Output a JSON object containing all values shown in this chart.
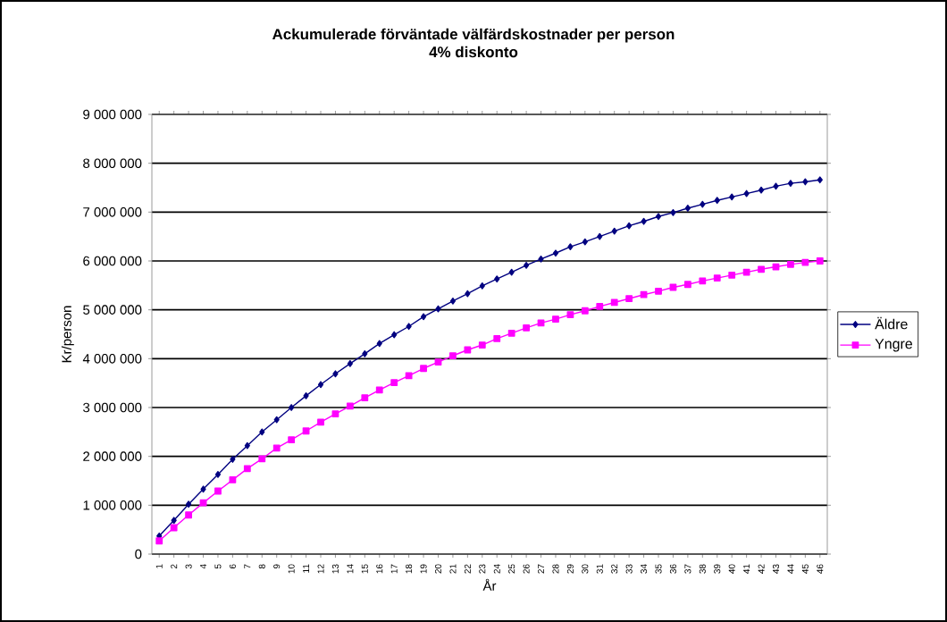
{
  "chart_data": {
    "type": "line",
    "title": "Ackumulerade förväntade välfärdskostnader per person",
    "subtitle": "4% diskonto",
    "xlabel": "År",
    "ylabel": "Kr/person",
    "categories": [
      "1",
      "2",
      "3",
      "4",
      "5",
      "6",
      "7",
      "8",
      "9",
      "10",
      "11",
      "12",
      "13",
      "14",
      "15",
      "16",
      "17",
      "18",
      "19",
      "20",
      "21",
      "22",
      "23",
      "24",
      "25",
      "26",
      "27",
      "28",
      "29",
      "30",
      "31",
      "32",
      "33",
      "34",
      "35",
      "36",
      "37",
      "38",
      "39",
      "40",
      "41",
      "42",
      "43",
      "44",
      "45",
      "46"
    ],
    "series": [
      {
        "name": "Äldre",
        "color": "#000080",
        "marker": "diamond",
        "values": [
          370000,
          690000,
          1020000,
          1330000,
          1630000,
          1940000,
          2220000,
          2500000,
          2750000,
          3000000,
          3240000,
          3470000,
          3690000,
          3900000,
          4100000,
          4310000,
          4490000,
          4660000,
          4860000,
          5020000,
          5180000,
          5330000,
          5490000,
          5630000,
          5770000,
          5910000,
          6040000,
          6160000,
          6290000,
          6390000,
          6500000,
          6610000,
          6720000,
          6810000,
          6910000,
          6990000,
          7080000,
          7160000,
          7240000,
          7310000,
          7380000,
          7450000,
          7530000,
          7590000,
          7620000,
          7660000
        ]
      },
      {
        "name": "Yngre",
        "color": "#ff00ff",
        "marker": "square",
        "values": [
          270000,
          540000,
          800000,
          1050000,
          1290000,
          1520000,
          1750000,
          1950000,
          2170000,
          2340000,
          2520000,
          2700000,
          2870000,
          3030000,
          3200000,
          3360000,
          3510000,
          3650000,
          3800000,
          3930000,
          4060000,
          4180000,
          4280000,
          4410000,
          4520000,
          4630000,
          4730000,
          4810000,
          4900000,
          4980000,
          5070000,
          5150000,
          5230000,
          5310000,
          5380000,
          5460000,
          5520000,
          5590000,
          5650000,
          5710000,
          5770000,
          5830000,
          5880000,
          5930000,
          5970000,
          6000000
        ]
      }
    ],
    "ylim": [
      0,
      9000000
    ],
    "yticks": [
      {
        "value": 0,
        "label": "0"
      },
      {
        "value": 1000000,
        "label": "1 000 000"
      },
      {
        "value": 2000000,
        "label": "2 000 000"
      },
      {
        "value": 3000000,
        "label": "3 000 000"
      },
      {
        "value": 4000000,
        "label": "4 000 000"
      },
      {
        "value": 5000000,
        "label": "5 000 000"
      },
      {
        "value": 6000000,
        "label": "6 000 000"
      },
      {
        "value": 7000000,
        "label": "7 000 000"
      },
      {
        "value": 8000000,
        "label": "8 000 000"
      },
      {
        "value": 9000000,
        "label": "9 000 000"
      }
    ],
    "grid": "y",
    "legend": "right",
    "line_style": "solid"
  }
}
